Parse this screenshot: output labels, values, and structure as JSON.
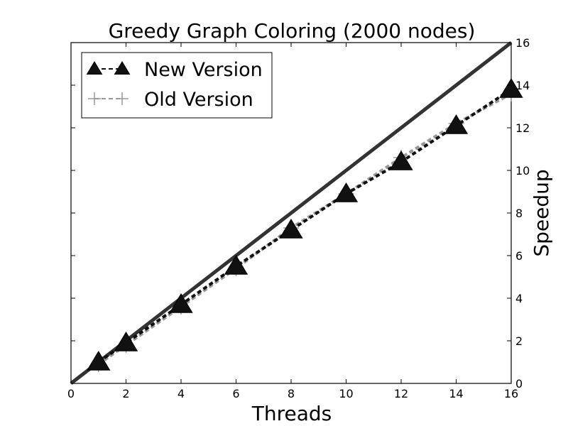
{
  "chart_data": {
    "type": "line",
    "title": "Greedy Graph Coloring (2000 nodes)",
    "xlabel": "Threads",
    "ylabel": "Speedup",
    "xlim": [
      0,
      16
    ],
    "ylim": [
      0,
      16
    ],
    "x_ticks": [
      0,
      2,
      4,
      6,
      8,
      10,
      12,
      14,
      16
    ],
    "y_ticks": [
      0,
      2,
      4,
      6,
      8,
      10,
      12,
      14,
      16
    ],
    "y_axis_side": "right",
    "grid": false,
    "legend_position": "top-left",
    "reference_line": {
      "x": [
        0,
        16
      ],
      "y": [
        0,
        16
      ],
      "color": "#333333"
    },
    "series": [
      {
        "name": "New Version",
        "marker": "triangle",
        "line_style": "dashed",
        "color": "#111111",
        "x": [
          1,
          2,
          4,
          6,
          8,
          10,
          12,
          14,
          16
        ],
        "y": [
          1.0,
          1.9,
          3.7,
          5.5,
          7.2,
          8.9,
          10.4,
          12.1,
          13.8
        ]
      },
      {
        "name": "Old Version",
        "marker": "plus",
        "line_style": "dashed",
        "color": "#999999",
        "x": [
          1,
          2,
          4,
          6,
          8,
          10,
          12,
          14,
          16
        ],
        "y": [
          0.9,
          1.8,
          3.6,
          5.4,
          7.3,
          8.9,
          10.6,
          12.2,
          13.6
        ]
      }
    ]
  }
}
